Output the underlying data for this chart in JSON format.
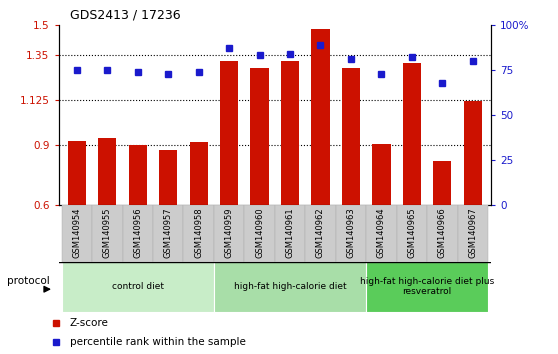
{
  "title": "GDS2413 / 17236",
  "samples": [
    "GSM140954",
    "GSM140955",
    "GSM140956",
    "GSM140957",
    "GSM140958",
    "GSM140959",
    "GSM140960",
    "GSM140961",
    "GSM140962",
    "GSM140963",
    "GSM140964",
    "GSM140965",
    "GSM140966",
    "GSM140967"
  ],
  "zscore": [
    0.92,
    0.935,
    0.9,
    0.875,
    0.915,
    1.32,
    1.285,
    1.32,
    1.48,
    1.285,
    0.905,
    1.31,
    0.82,
    1.12
  ],
  "percentile": [
    75,
    75,
    74,
    73,
    74,
    87,
    83,
    84,
    89,
    81,
    73,
    82,
    68,
    80
  ],
  "bar_color": "#cc1100",
  "dot_color": "#1a1acc",
  "ylim_left": [
    0.6,
    1.5
  ],
  "ylim_right": [
    0,
    100
  ],
  "yticks_left": [
    0.6,
    0.9,
    1.125,
    1.35,
    1.5
  ],
  "ytick_labels_left": [
    "0.6",
    "0.9",
    "1.125",
    "1.35",
    "1.5"
  ],
  "yticks_right": [
    0,
    25,
    50,
    75,
    100
  ],
  "ytick_labels_right": [
    "0",
    "25",
    "50",
    "75",
    "100%"
  ],
  "hlines": [
    0.9,
    1.125,
    1.35
  ],
  "groups": [
    {
      "label": "control diet",
      "start": 0,
      "end": 5,
      "color": "#c8edc8"
    },
    {
      "label": "high-fat high-calorie diet",
      "start": 5,
      "end": 10,
      "color": "#a8dea8"
    },
    {
      "label": "high-fat high-calorie diet plus\nresveratrol",
      "start": 10,
      "end": 14,
      "color": "#5acc5a"
    }
  ],
  "legend_zscore_label": "Z-score",
  "legend_pct_label": "percentile rank within the sample",
  "protocol_label": "protocol",
  "bar_width": 0.6
}
